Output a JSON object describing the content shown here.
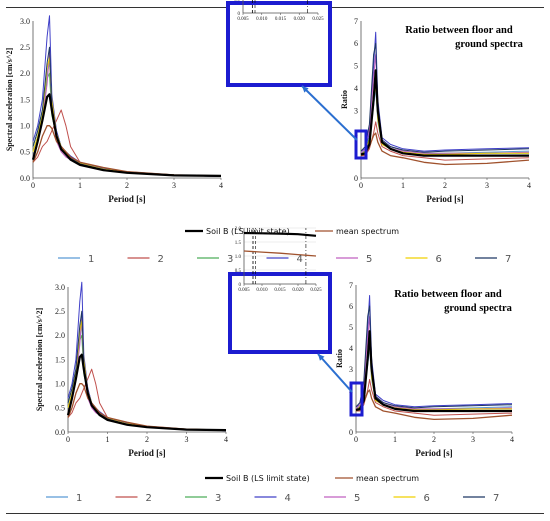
{
  "legend": {
    "soil": "Soil B (LS limit state)",
    "mean": "mean spectrum",
    "numbers": [
      "1",
      "2",
      "3",
      "4",
      "5",
      "6",
      "7"
    ]
  },
  "colors": {
    "soil": "#000000",
    "mean": "#a0522d",
    "series": [
      "#5b9bd5",
      "#c0504d",
      "#4ead5b",
      "#4040c8",
      "#c060c0",
      "#f0d000",
      "#1f3864"
    ],
    "highlight": "#1c1cd0"
  },
  "chart_data": [
    {
      "type": "line",
      "panel": "top-left",
      "xlabel": "Period [s]",
      "ylabel": "Spectral acceleration [cm/s^2]",
      "xlim": [
        0,
        4
      ],
      "ylim": [
        0,
        3.0
      ],
      "xticks": [
        "0",
        "1",
        "2",
        "3",
        "4"
      ],
      "yticks": [
        "0.0",
        "0.5",
        "1.0",
        "1.5",
        "2.0",
        "2.5",
        "3.0"
      ],
      "x": [
        0,
        0.1,
        0.2,
        0.3,
        0.35,
        0.4,
        0.5,
        0.6,
        0.7,
        0.8,
        1.0,
        1.5,
        2.0,
        3.0,
        4.0
      ],
      "series": [
        {
          "name": "Soil B (LS limit state)",
          "values": [
            0.35,
            0.7,
            1.1,
            1.55,
            1.6,
            1.3,
            0.8,
            0.55,
            0.45,
            0.35,
            0.25,
            0.15,
            0.1,
            0.05,
            0.04
          ]
        },
        {
          "name": "mean spectrum",
          "values": [
            0.3,
            0.5,
            0.8,
            1.0,
            1.0,
            0.95,
            0.7,
            0.6,
            0.5,
            0.4,
            0.3,
            0.2,
            0.12,
            0.06,
            0.04
          ]
        },
        {
          "name": "1",
          "values": [
            0.5,
            0.8,
            1.2,
            2.0,
            2.2,
            1.4,
            0.9,
            0.6,
            0.5,
            0.4,
            0.3,
            0.18,
            0.12,
            0.06,
            0.04
          ]
        },
        {
          "name": "2",
          "values": [
            0.3,
            0.4,
            0.6,
            0.7,
            0.8,
            0.9,
            1.1,
            1.3,
            1.0,
            0.6,
            0.3,
            0.18,
            0.12,
            0.06,
            0.04
          ]
        },
        {
          "name": "3",
          "values": [
            0.6,
            0.9,
            1.3,
            1.9,
            2.0,
            1.2,
            0.8,
            0.55,
            0.45,
            0.4,
            0.28,
            0.17,
            0.1,
            0.05,
            0.03
          ]
        },
        {
          "name": "4",
          "values": [
            0.7,
            1.0,
            1.5,
            2.7,
            3.1,
            1.6,
            0.9,
            0.6,
            0.5,
            0.42,
            0.3,
            0.18,
            0.11,
            0.05,
            0.03
          ]
        },
        {
          "name": "5",
          "values": [
            0.4,
            0.7,
            1.1,
            1.8,
            2.4,
            1.3,
            0.7,
            0.5,
            0.4,
            0.35,
            0.25,
            0.15,
            0.1,
            0.05,
            0.03
          ]
        },
        {
          "name": "6",
          "values": [
            0.5,
            0.8,
            1.2,
            2.1,
            2.3,
            1.5,
            0.85,
            0.6,
            0.48,
            0.38,
            0.28,
            0.17,
            0.11,
            0.06,
            0.04
          ]
        },
        {
          "name": "7",
          "values": [
            0.6,
            0.9,
            1.3,
            2.2,
            2.5,
            1.4,
            0.8,
            0.55,
            0.45,
            0.38,
            0.27,
            0.16,
            0.1,
            0.05,
            0.03
          ]
        }
      ]
    },
    {
      "type": "line",
      "panel": "top-right",
      "title": "Ratio between floor and ground spectra",
      "xlabel": "Period [s]",
      "ylabel": "Ratio",
      "xlim": [
        0,
        4
      ],
      "ylim": [
        0,
        7
      ],
      "xticks": [
        "0",
        "1",
        "2",
        "3",
        "4"
      ],
      "yticks": [
        "0",
        "1",
        "2",
        "3",
        "4",
        "5",
        "6",
        "7"
      ],
      "x": [
        0,
        0.1,
        0.2,
        0.3,
        0.35,
        0.4,
        0.5,
        0.7,
        1.0,
        1.5,
        2.0,
        3.0,
        4.0
      ],
      "series": [
        {
          "name": "Soil B (LS limit state)",
          "values": [
            1.05,
            1.1,
            1.5,
            3.5,
            4.8,
            3.0,
            1.6,
            1.3,
            1.1,
            1.0,
            1.0,
            1.0,
            1.0
          ]
        },
        {
          "name": "mean spectrum",
          "values": [
            1.0,
            1.05,
            1.4,
            1.9,
            2.0,
            1.6,
            1.2,
            1.0,
            0.9,
            0.7,
            0.6,
            0.65,
            0.8
          ]
        },
        {
          "name": "1",
          "values": [
            1.1,
            1.2,
            1.6,
            3.2,
            4.0,
            2.5,
            1.5,
            1.3,
            1.1,
            1.05,
            1.1,
            1.15,
            1.2
          ]
        },
        {
          "name": "2",
          "values": [
            1.0,
            1.0,
            1.3,
            2.0,
            2.5,
            2.0,
            1.4,
            1.2,
            1.0,
            0.9,
            0.8,
            0.85,
            0.9
          ]
        },
        {
          "name": "3",
          "values": [
            1.1,
            1.2,
            1.8,
            3.8,
            4.5,
            2.8,
            1.6,
            1.4,
            1.2,
            1.1,
            1.1,
            1.1,
            1.1
          ]
        },
        {
          "name": "4",
          "values": [
            1.2,
            1.3,
            2.0,
            5.0,
            6.5,
            3.5,
            1.8,
            1.5,
            1.3,
            1.2,
            1.25,
            1.3,
            1.35
          ]
        },
        {
          "name": "5",
          "values": [
            1.1,
            1.3,
            2.2,
            4.5,
            5.5,
            3.2,
            1.7,
            1.4,
            1.2,
            1.1,
            1.1,
            1.1,
            1.15
          ]
        },
        {
          "name": "6",
          "values": [
            1.0,
            1.2,
            1.7,
            3.5,
            4.2,
            2.6,
            1.5,
            1.3,
            1.15,
            1.05,
            1.05,
            1.1,
            1.1
          ]
        },
        {
          "name": "7",
          "values": [
            1.2,
            1.4,
            2.4,
            5.5,
            6.0,
            3.3,
            1.7,
            1.4,
            1.25,
            1.15,
            1.2,
            1.25,
            1.3
          ]
        }
      ]
    },
    {
      "type": "line",
      "panel": "top-inset",
      "xlim": [
        0.005,
        0.025
      ],
      "ylim": [
        0,
        2.0
      ],
      "xticks": [
        "0.005",
        "0.010",
        "0.015",
        "0.020",
        "0.025"
      ],
      "yticks": [
        "0",
        "0.5",
        "1.0",
        "1.5",
        "2.0"
      ],
      "x": [
        0.005,
        0.01,
        0.015,
        0.02,
        0.025
      ],
      "series": [
        {
          "name": "Soil B (LS limit state)",
          "values": [
            1.82,
            1.81,
            1.8,
            1.78,
            1.72
          ]
        },
        {
          "name": "mean spectrum",
          "values": [
            1.18,
            1.14,
            1.1,
            1.05,
            1.0
          ]
        }
      ]
    },
    {
      "type": "line",
      "panel": "bottom-left",
      "xlabel": "Period [s]",
      "ylabel": "Spectral acceleration [cm/s^2]",
      "xlim": [
        0,
        4
      ],
      "ylim": [
        0,
        3.0
      ],
      "xticks": [
        "0",
        "1",
        "2",
        "3",
        "4"
      ],
      "yticks": [
        "0.0",
        "0.5",
        "1.0",
        "1.5",
        "2.0",
        "2.5",
        "3.0"
      ],
      "x": [
        0,
        0.1,
        0.2,
        0.3,
        0.35,
        0.4,
        0.5,
        0.6,
        0.7,
        0.8,
        1.0,
        1.5,
        2.0,
        3.0,
        4.0
      ],
      "series": [
        {
          "name": "Soil B (LS limit state)",
          "values": [
            0.35,
            0.7,
            1.1,
            1.55,
            1.6,
            1.3,
            0.8,
            0.55,
            0.45,
            0.35,
            0.25,
            0.15,
            0.1,
            0.05,
            0.04
          ]
        },
        {
          "name": "mean spectrum",
          "values": [
            0.3,
            0.5,
            0.8,
            1.0,
            1.0,
            0.95,
            0.7,
            0.6,
            0.5,
            0.4,
            0.3,
            0.2,
            0.12,
            0.06,
            0.04
          ]
        },
        {
          "name": "1",
          "values": [
            0.5,
            0.8,
            1.2,
            2.0,
            2.2,
            1.4,
            0.9,
            0.6,
            0.5,
            0.4,
            0.3,
            0.18,
            0.12,
            0.06,
            0.04
          ]
        },
        {
          "name": "2",
          "values": [
            0.3,
            0.4,
            0.6,
            0.7,
            0.8,
            0.9,
            1.1,
            1.3,
            1.0,
            0.6,
            0.3,
            0.18,
            0.12,
            0.06,
            0.04
          ]
        },
        {
          "name": "3",
          "values": [
            0.6,
            0.9,
            1.3,
            1.9,
            2.0,
            1.2,
            0.8,
            0.55,
            0.45,
            0.4,
            0.28,
            0.17,
            0.1,
            0.05,
            0.03
          ]
        },
        {
          "name": "4",
          "values": [
            0.7,
            1.0,
            1.5,
            2.7,
            3.1,
            1.6,
            0.9,
            0.6,
            0.5,
            0.42,
            0.3,
            0.18,
            0.11,
            0.05,
            0.03
          ]
        },
        {
          "name": "5",
          "values": [
            0.4,
            0.7,
            1.1,
            1.8,
            2.4,
            1.3,
            0.7,
            0.5,
            0.4,
            0.35,
            0.25,
            0.15,
            0.1,
            0.05,
            0.03
          ]
        },
        {
          "name": "6",
          "values": [
            0.5,
            0.8,
            1.2,
            2.1,
            2.3,
            1.5,
            0.85,
            0.6,
            0.48,
            0.38,
            0.28,
            0.17,
            0.11,
            0.06,
            0.04
          ]
        },
        {
          "name": "7",
          "values": [
            0.6,
            0.9,
            1.3,
            2.2,
            2.5,
            1.4,
            0.8,
            0.55,
            0.45,
            0.38,
            0.27,
            0.16,
            0.1,
            0.05,
            0.03
          ]
        }
      ]
    },
    {
      "type": "line",
      "panel": "bottom-right",
      "title": "Ratio between floor and ground spectra",
      "xlabel": "Period [s]",
      "ylabel": "Ratio",
      "xlim": [
        0,
        4
      ],
      "ylim": [
        0,
        7
      ],
      "xticks": [
        "0",
        "1",
        "2",
        "3",
        "4"
      ],
      "yticks": [
        "0",
        "1",
        "2",
        "3",
        "4",
        "5",
        "6",
        "7"
      ],
      "x": [
        0,
        0.1,
        0.2,
        0.3,
        0.35,
        0.4,
        0.5,
        0.7,
        1.0,
        1.5,
        2.0,
        3.0,
        4.0
      ],
      "series": [
        {
          "name": "Soil B (LS limit state)",
          "values": [
            1.05,
            1.1,
            1.5,
            3.5,
            4.8,
            3.0,
            1.6,
            1.3,
            1.1,
            1.0,
            1.0,
            1.0,
            1.0
          ]
        },
        {
          "name": "mean spectrum",
          "values": [
            1.0,
            1.05,
            1.4,
            1.9,
            2.0,
            1.6,
            1.2,
            1.0,
            0.9,
            0.7,
            0.6,
            0.65,
            0.8
          ]
        },
        {
          "name": "1",
          "values": [
            1.1,
            1.2,
            1.6,
            3.2,
            4.0,
            2.5,
            1.5,
            1.3,
            1.1,
            1.05,
            1.1,
            1.15,
            1.2
          ]
        },
        {
          "name": "2",
          "values": [
            1.0,
            1.0,
            1.3,
            2.0,
            2.5,
            2.0,
            1.4,
            1.2,
            1.0,
            0.9,
            0.8,
            0.85,
            0.9
          ]
        },
        {
          "name": "3",
          "values": [
            1.1,
            1.2,
            1.8,
            3.8,
            4.5,
            2.8,
            1.6,
            1.4,
            1.2,
            1.1,
            1.1,
            1.1,
            1.1
          ]
        },
        {
          "name": "4",
          "values": [
            1.2,
            1.3,
            2.0,
            5.0,
            6.5,
            3.5,
            1.8,
            1.5,
            1.3,
            1.2,
            1.25,
            1.3,
            1.35
          ]
        },
        {
          "name": "5",
          "values": [
            1.1,
            1.3,
            2.2,
            4.5,
            5.5,
            3.2,
            1.7,
            1.4,
            1.2,
            1.1,
            1.1,
            1.1,
            1.15
          ]
        },
        {
          "name": "6",
          "values": [
            1.0,
            1.2,
            1.7,
            3.5,
            4.2,
            2.6,
            1.5,
            1.3,
            1.15,
            1.05,
            1.05,
            1.1,
            1.1
          ]
        },
        {
          "name": "7",
          "values": [
            1.2,
            1.4,
            2.4,
            5.5,
            6.0,
            3.3,
            1.7,
            1.4,
            1.25,
            1.15,
            1.2,
            1.25,
            1.3
          ]
        }
      ]
    },
    {
      "type": "line",
      "panel": "bottom-inset",
      "xlim": [
        0.005,
        0.025
      ],
      "ylim": [
        0,
        2.0
      ],
      "xticks": [
        "0.005",
        "0.010",
        "0.015",
        "0.020",
        "0.025"
      ],
      "yticks": [
        "0",
        "0.5",
        "1.0",
        "1.5",
        "2.0"
      ],
      "x": [
        0.005,
        0.01,
        0.015,
        0.02,
        0.025
      ],
      "series": [
        {
          "name": "Soil B (LS limit state)",
          "values": [
            1.82,
            1.81,
            1.8,
            1.78,
            1.72
          ]
        },
        {
          "name": "mean spectrum",
          "values": [
            1.18,
            1.14,
            1.1,
            1.05,
            1.0
          ]
        }
      ]
    }
  ]
}
